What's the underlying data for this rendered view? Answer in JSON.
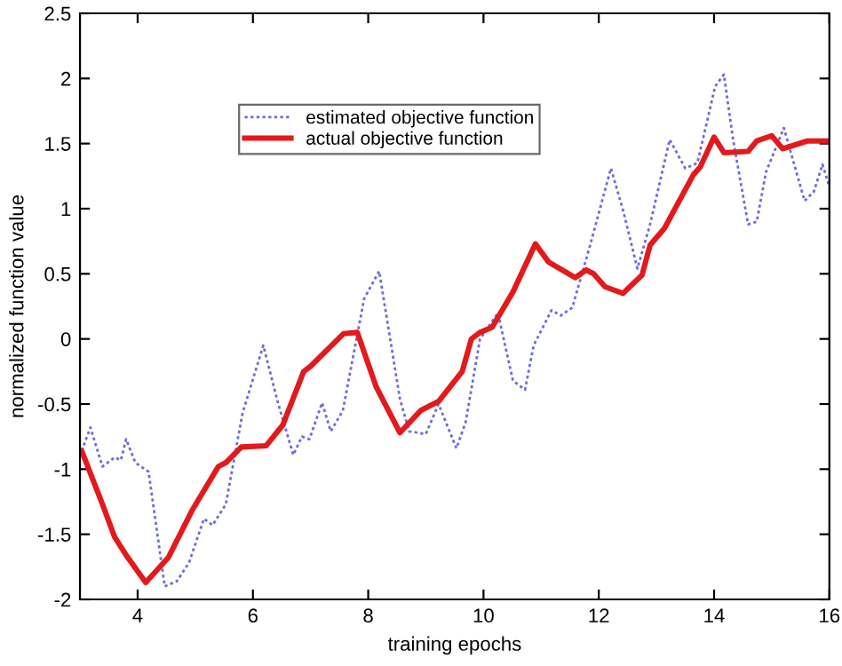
{
  "chart_data": {
    "type": "line",
    "xlabel": "training epochs",
    "ylabel": "normalized function value",
    "xlim": [
      3,
      16
    ],
    "xticks": [
      4,
      6,
      8,
      10,
      12,
      14,
      16
    ],
    "ylim": [
      -2,
      2.5
    ],
    "yticks": [
      -2,
      -1.5,
      -1,
      -0.5,
      0,
      0.5,
      1,
      1.5,
      2,
      2.5
    ],
    "grid": false,
    "legend": "top left",
    "series": [
      {
        "name": "estimated objective function",
        "color": "#6b6bdd",
        "line_style": "dotted",
        "x": [
          3.03,
          3.18,
          3.39,
          3.6,
          3.71,
          3.8,
          3.96,
          4.19,
          4.47,
          4.68,
          4.89,
          5.15,
          5.3,
          5.53,
          5.82,
          6.18,
          6.44,
          6.7,
          6.85,
          6.98,
          7.2,
          7.35,
          7.56,
          7.93,
          8.19,
          8.55,
          8.71,
          9.0,
          9.22,
          9.53,
          9.69,
          9.94,
          10.25,
          10.51,
          10.72,
          10.87,
          11.18,
          11.34,
          11.54,
          11.85,
          12.21,
          12.42,
          12.67,
          12.89,
          13.23,
          13.5,
          13.71,
          14.02,
          14.17,
          14.33,
          14.59,
          14.74,
          14.9,
          15.21,
          15.57,
          15.73,
          15.88,
          16.0
        ],
        "values": [
          -0.86,
          -0.68,
          -0.98,
          -0.91,
          -0.93,
          -0.77,
          -0.95,
          -1.02,
          -1.9,
          -1.86,
          -1.72,
          -1.38,
          -1.43,
          -1.27,
          -0.57,
          -0.05,
          -0.5,
          -0.89,
          -0.75,
          -0.77,
          -0.49,
          -0.71,
          -0.55,
          0.31,
          0.52,
          -0.46,
          -0.71,
          -0.73,
          -0.5,
          -0.84,
          -0.64,
          0.0,
          0.2,
          -0.32,
          -0.39,
          -0.05,
          0.22,
          0.18,
          0.24,
          0.72,
          1.31,
          0.99,
          0.54,
          0.88,
          1.53,
          1.31,
          1.35,
          1.94,
          2.03,
          1.53,
          0.88,
          0.9,
          1.28,
          1.62,
          1.06,
          1.13,
          1.34,
          1.17
        ]
      },
      {
        "name": "actual objective function",
        "color": "#e3191c",
        "line_style": "solid",
        "x": [
          3.03,
          3.39,
          3.6,
          3.8,
          4.14,
          4.53,
          4.94,
          5.4,
          5.53,
          5.8,
          6.23,
          6.52,
          6.88,
          7.0,
          7.57,
          7.81,
          8.14,
          8.55,
          8.91,
          9.22,
          9.63,
          9.79,
          9.94,
          10.15,
          10.51,
          10.9,
          11.13,
          11.59,
          11.78,
          11.91,
          12.11,
          12.42,
          12.75,
          12.89,
          13.14,
          13.64,
          13.76,
          14.0,
          14.17,
          14.59,
          14.74,
          15.0,
          15.19,
          15.62,
          16.0
        ],
        "values": [
          -0.86,
          -1.27,
          -1.52,
          -1.66,
          -1.87,
          -1.68,
          -1.32,
          -0.98,
          -0.95,
          -0.83,
          -0.82,
          -0.66,
          -0.25,
          -0.21,
          0.04,
          0.05,
          -0.37,
          -0.72,
          -0.55,
          -0.48,
          -0.25,
          0.0,
          0.05,
          0.09,
          0.36,
          0.73,
          0.59,
          0.47,
          0.53,
          0.5,
          0.4,
          0.35,
          0.49,
          0.72,
          0.85,
          1.26,
          1.32,
          1.55,
          1.43,
          1.44,
          1.52,
          1.56,
          1.46,
          1.52,
          1.52
        ]
      }
    ]
  }
}
